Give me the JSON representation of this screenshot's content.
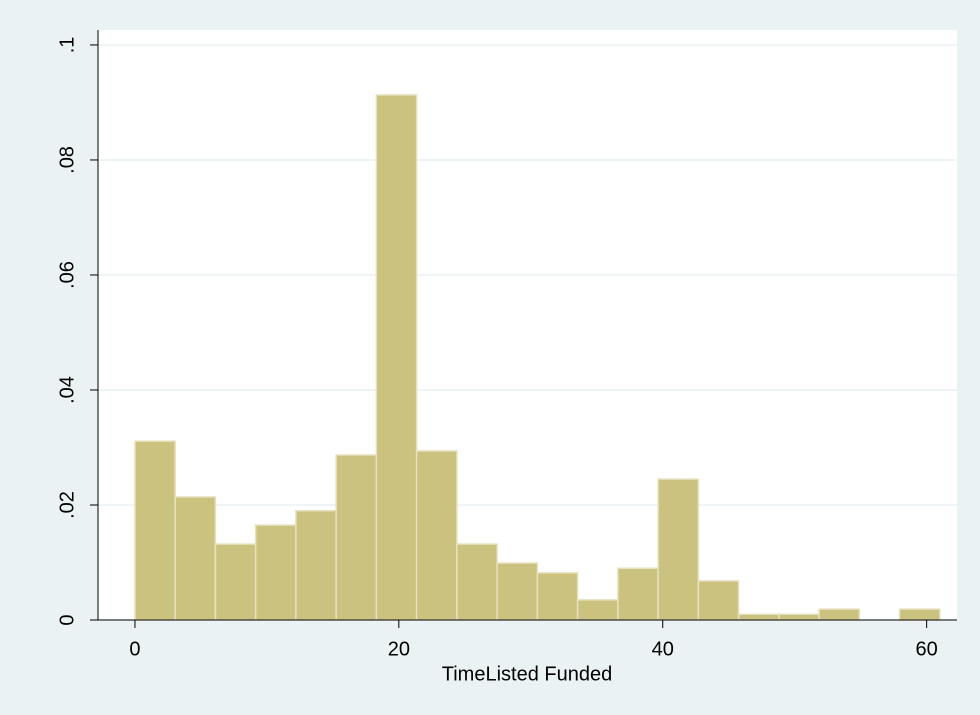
{
  "chart_data": {
    "type": "histogram",
    "x_label": "TimeListed Funded",
    "bins": [
      0,
      3.05,
      6.1,
      9.15,
      12.2,
      15.25,
      18.3,
      21.35,
      24.4,
      27.45,
      30.5,
      33.55,
      36.6,
      39.65,
      42.7,
      45.75,
      48.8,
      51.85,
      54.9,
      57.95,
      61
    ],
    "values": [
      0.0311,
      0.0214,
      0.0132,
      0.0165,
      0.019,
      0.0287,
      0.0913,
      0.0294,
      0.0132,
      0.0099,
      0.0082,
      0.0035,
      0.009,
      0.0245,
      0.0068,
      0.001,
      0.001,
      0.0019,
      0,
      0.0019
    ],
    "color": "#ccc27f",
    "xlim": [
      -2.8,
      62.3
    ],
    "xticks": [
      0,
      20,
      40,
      60
    ],
    "ylim": [
      0,
      0.1026
    ],
    "yticks": [
      0,
      {
        "value": 0.02,
        "label": ".02"
      },
      {
        "value": 0.04,
        "label": ".04"
      },
      {
        "value": 0.06,
        "label": ".06"
      },
      {
        "value": 0.08,
        "label": ".08"
      },
      {
        "value": 0.1,
        "label": ".1"
      }
    ],
    "grid": true
  }
}
